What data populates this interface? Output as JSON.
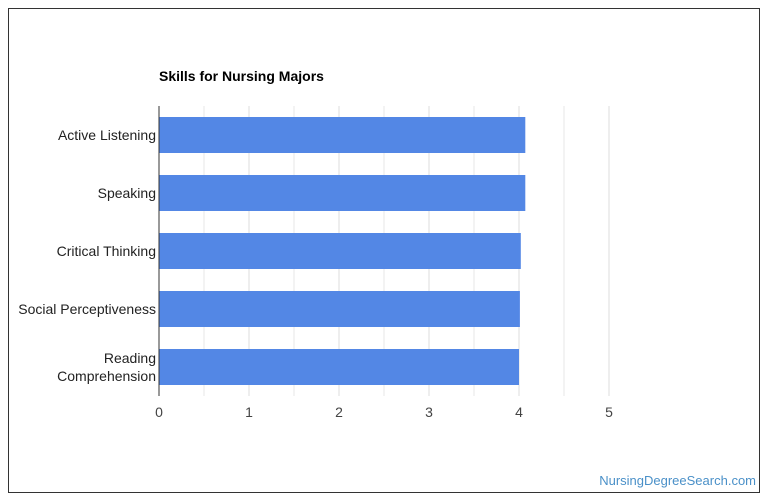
{
  "chart_data": {
    "type": "bar",
    "orientation": "horizontal",
    "title": "Skills for Nursing Majors",
    "categories": [
      "Active Listening",
      "Speaking",
      "Critical Thinking",
      "Social Perceptiveness",
      "Reading Comprehension"
    ],
    "category_lines": [
      [
        "Active Listening"
      ],
      [
        "Speaking"
      ],
      [
        "Critical Thinking"
      ],
      [
        "Social Perceptiveness"
      ],
      [
        "Reading",
        "Comprehension"
      ]
    ],
    "values": [
      4.07,
      4.07,
      4.02,
      4.01,
      4.0
    ],
    "xlim": [
      0,
      5
    ],
    "xticks": [
      "0",
      "1",
      "2",
      "3",
      "4",
      "5"
    ],
    "xlabel": "",
    "ylabel": "",
    "grid": true,
    "bar_color": "#5387e5",
    "grid_color": "#dddddd",
    "axis_color": "#333333"
  },
  "footer": {
    "source_link": "NursingDegreeSearch.com",
    "link_color": "#4a90c8"
  }
}
